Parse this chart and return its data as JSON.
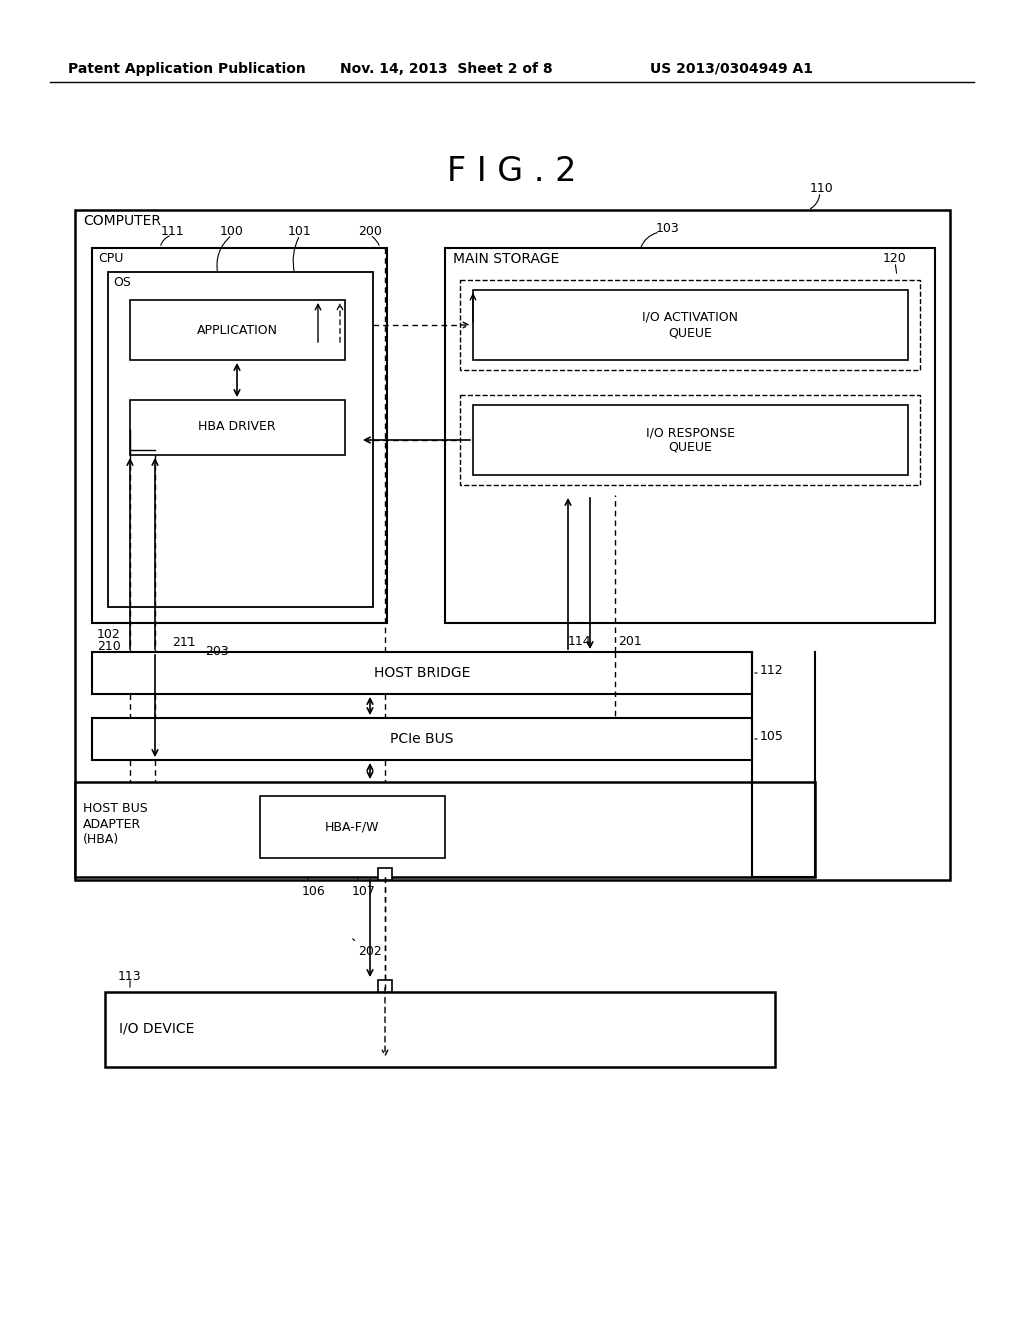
{
  "bg_color": "#ffffff",
  "header_left": "Patent Application Publication",
  "header_mid": "Nov. 14, 2013  Sheet 2 of 8",
  "header_right": "US 2013/0304949 A1",
  "fig_title": "F I G . 2",
  "ref_110": "110",
  "ref_111": "111",
  "ref_100": "100",
  "ref_101": "101",
  "ref_200": "200",
  "ref_103": "103",
  "ref_102": "102",
  "ref_210": "210",
  "ref_211": "211",
  "ref_203": "203",
  "ref_112": "112",
  "ref_105": "105",
  "ref_114": "114",
  "ref_201": "201",
  "ref_120": "120",
  "ref_106": "106",
  "ref_107": "107",
  "ref_202": "202",
  "ref_113": "113",
  "label_computer": "COMPUTER",
  "label_cpu": "CPU",
  "label_os": "OS",
  "label_application": "APPLICATION",
  "label_hba_driver": "HBA DRIVER",
  "label_main_storage": "MAIN STORAGE",
  "label_io_activation": "I/O ACTIVATION\nQUEUE",
  "label_io_response": "I/O RESPONSE\nQUEUE",
  "label_host_bridge": "HOST BRIDGE",
  "label_pcie_bus": "PCIe BUS",
  "label_hba": "HOST BUS\nADAPTER\n(HBA)",
  "label_hba_fw": "HBA-F/W",
  "label_io_device": "I/O DEVICE"
}
